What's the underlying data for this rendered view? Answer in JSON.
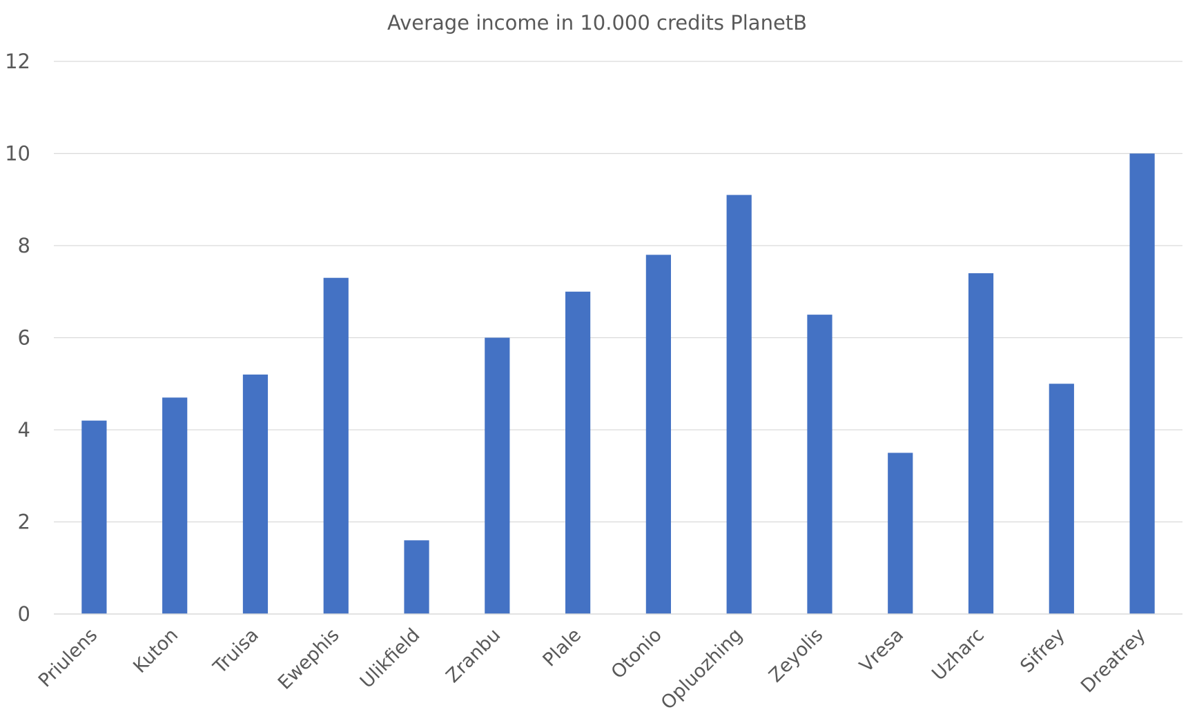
{
  "chart_data": {
    "type": "bar",
    "title": "Average income in 10.000 credits PlanetB",
    "xlabel": "",
    "ylabel": "",
    "categories": [
      "Priulens",
      "Kuton",
      "Truisa",
      "Ewephis",
      "Ulikfield",
      "Zranbu",
      "Plale",
      "Otonio",
      "Opluozhing",
      "Zeyolis",
      "Vresa",
      "Uzharc",
      "Sifrey",
      "Dreatrey"
    ],
    "values": [
      4.2,
      4.7,
      5.2,
      7.3,
      1.6,
      6.0,
      7.0,
      7.8,
      9.1,
      6.5,
      3.5,
      7.4,
      5.0,
      10.0
    ],
    "ylim": [
      0,
      12
    ],
    "yticks": [
      0,
      2,
      4,
      6,
      8,
      10,
      12
    ],
    "grid": true,
    "legend": "none",
    "bar_color": "#4472c4"
  }
}
